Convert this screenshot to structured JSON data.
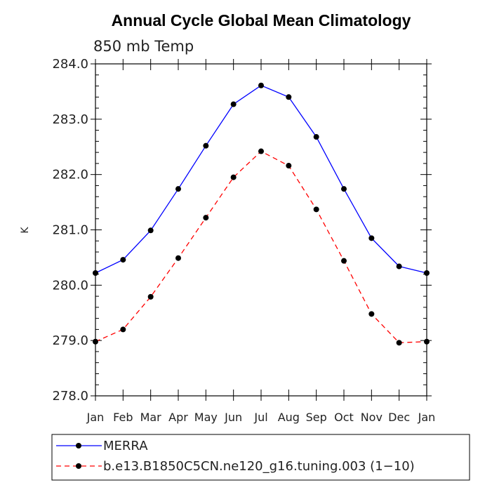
{
  "chart_data": {
    "type": "line",
    "title": "Annual Cycle Global Mean Climatology",
    "subtitle": "850 mb Temp",
    "ylabel": "K",
    "xlabel": "",
    "categories": [
      "Jan",
      "Feb",
      "Mar",
      "Apr",
      "May",
      "Jun",
      "Jul",
      "Aug",
      "Sep",
      "Oct",
      "Nov",
      "Dec",
      "Jan"
    ],
    "ylim": [
      278.0,
      284.0
    ],
    "yticks": [
      "278.0",
      "279.0",
      "280.0",
      "281.0",
      "282.0",
      "283.0",
      "284.0"
    ],
    "grid": false,
    "legend_position": "bottom",
    "series": [
      {
        "name": "MERRA",
        "color": "#0000ff",
        "dash": "solid",
        "values": [
          280.22,
          280.46,
          280.99,
          281.74,
          282.52,
          283.27,
          283.61,
          283.4,
          282.68,
          281.74,
          280.85,
          280.34,
          280.22
        ]
      },
      {
        "name": "b.e13.B1850C5CN.ne120_g16.tuning.003 (1−10)",
        "color": "#ff0000",
        "dash": "dashed",
        "values": [
          278.98,
          279.2,
          279.79,
          280.49,
          281.22,
          281.95,
          282.42,
          282.16,
          281.37,
          280.44,
          279.48,
          278.96,
          278.98
        ]
      }
    ]
  }
}
